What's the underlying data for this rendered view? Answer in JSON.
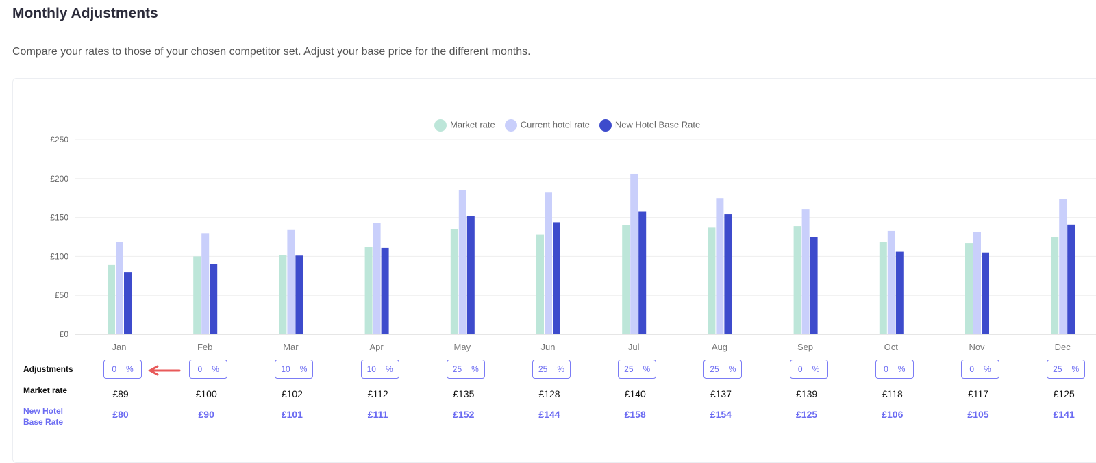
{
  "header": {
    "title": "Monthly Adjustments",
    "description": "Compare your rates to those of your chosen competitor set. Adjust your base price for the different months."
  },
  "row_labels": {
    "adjustments": "Adjustments",
    "market_rate": "Market rate",
    "new_rate": "New Hotel Base Rate"
  },
  "percent_sign": "%",
  "colors": {
    "market": "#bde6d9",
    "current": "#c9cffb",
    "new": "#3d4bcc"
  },
  "chart_data": {
    "type": "bar",
    "categories": [
      "Jan",
      "Feb",
      "Mar",
      "Apr",
      "May",
      "Jun",
      "Jul",
      "Aug",
      "Sep",
      "Oct",
      "Nov",
      "Dec"
    ],
    "series": [
      {
        "name": "Market rate",
        "values": [
          89,
          100,
          102,
          112,
          135,
          128,
          140,
          137,
          139,
          118,
          117,
          125
        ]
      },
      {
        "name": "Current hotel rate",
        "values": [
          118,
          130,
          134,
          143,
          185,
          182,
          206,
          175,
          161,
          133,
          132,
          174
        ]
      },
      {
        "name": "New Hotel Base Rate",
        "values": [
          80,
          90,
          101,
          111,
          152,
          144,
          158,
          154,
          125,
          106,
          105,
          141
        ]
      }
    ],
    "yticks": [
      "£0",
      "£50",
      "£100",
      "£150",
      "£200",
      "£250"
    ],
    "ylim": [
      0,
      250
    ],
    "legend": "top-center"
  },
  "adjustments": [
    "0",
    "0",
    "10",
    "10",
    "25",
    "25",
    "25",
    "25",
    "0",
    "0",
    "0",
    "25"
  ],
  "market_labels": [
    "£89",
    "£100",
    "£102",
    "£112",
    "£135",
    "£128",
    "£140",
    "£137",
    "£139",
    "£118",
    "£117",
    "£125"
  ],
  "new_labels": [
    "£80",
    "£90",
    "£101",
    "£111",
    "£152",
    "£144",
    "£158",
    "£154",
    "£125",
    "£106",
    "£105",
    "£141"
  ]
}
